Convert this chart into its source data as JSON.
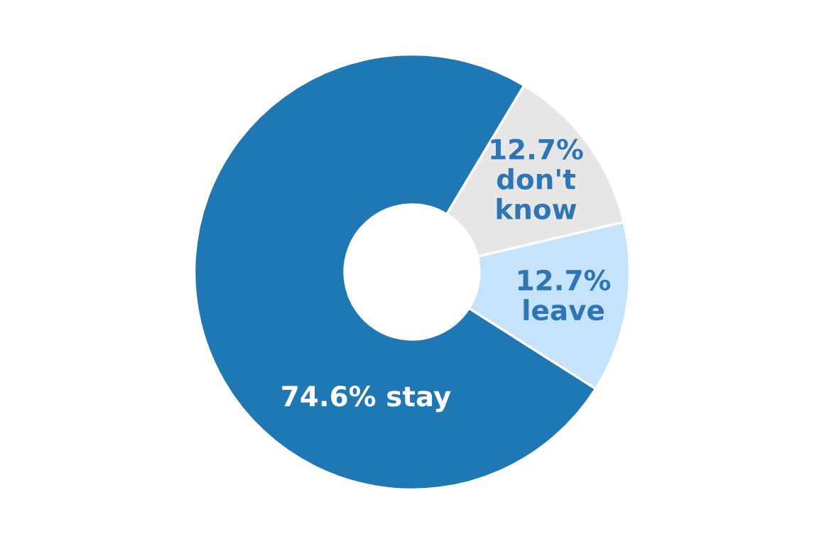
{
  "chart_data": {
    "type": "donut",
    "categories": [
      "stay",
      "leave",
      "don't know"
    ],
    "values": [
      74.6,
      12.7,
      12.7
    ],
    "value_labels": [
      "74.6%",
      "12.7%",
      "12.7%"
    ],
    "colors": [
      "#1f77b4",
      "#c5e3fb",
      "#e6e6e6"
    ],
    "legend": false
  }
}
